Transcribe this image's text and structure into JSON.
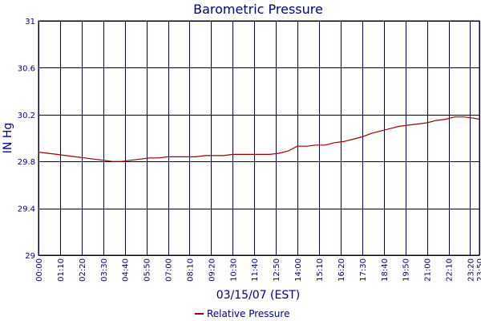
{
  "chart_data": {
    "type": "line",
    "title": "Barometric Pressure",
    "xlabel": "03/15/07 (EST)",
    "ylabel": "IN Hg",
    "x_tick_labels": [
      "00:00",
      "01:10",
      "02:20",
      "03:30",
      "04:40",
      "05:50",
      "07:00",
      "08:10",
      "09:20",
      "10:30",
      "11:40",
      "12:50",
      "14:00",
      "15:10",
      "16:20",
      "17:30",
      "18:40",
      "19:50",
      "21:00",
      "22:10",
      "23:20",
      "23:50"
    ],
    "x_tick_minutes": [
      0,
      70,
      140,
      210,
      280,
      350,
      420,
      490,
      560,
      630,
      700,
      770,
      840,
      910,
      980,
      1050,
      1120,
      1190,
      1260,
      1330,
      1400,
      1430
    ],
    "x_range_minutes": [
      0,
      1430
    ],
    "y_tick_labels": [
      "29",
      "29.4",
      "29.8",
      "30.2",
      "30.6",
      "31"
    ],
    "y_tick_values": [
      29,
      29.4,
      29.8,
      30.2,
      30.6,
      31
    ],
    "ylim": [
      29,
      31
    ],
    "grid": true,
    "legend_position": "bottom-center",
    "series": [
      {
        "name": "Relative Pressure",
        "color": "#990000",
        "x_minutes": [
          0,
          30,
          60,
          90,
          120,
          150,
          180,
          210,
          240,
          270,
          300,
          330,
          360,
          390,
          420,
          450,
          480,
          510,
          540,
          570,
          600,
          630,
          660,
          690,
          720,
          750,
          780,
          810,
          840,
          870,
          900,
          930,
          960,
          990,
          1020,
          1050,
          1080,
          1110,
          1140,
          1170,
          1200,
          1230,
          1260,
          1290,
          1320,
          1350,
          1380,
          1410,
          1430
        ],
        "values": [
          29.88,
          29.87,
          29.86,
          29.85,
          29.84,
          29.83,
          29.82,
          29.81,
          29.8,
          29.8,
          29.81,
          29.82,
          29.83,
          29.83,
          29.84,
          29.84,
          29.84,
          29.84,
          29.85,
          29.85,
          29.85,
          29.86,
          29.86,
          29.86,
          29.86,
          29.86,
          29.87,
          29.89,
          29.93,
          29.93,
          29.94,
          29.94,
          29.96,
          29.97,
          29.99,
          30.01,
          30.04,
          30.06,
          30.08,
          30.1,
          30.11,
          30.12,
          30.13,
          30.15,
          30.16,
          30.18,
          30.18,
          30.17,
          30.16
        ]
      }
    ]
  }
}
